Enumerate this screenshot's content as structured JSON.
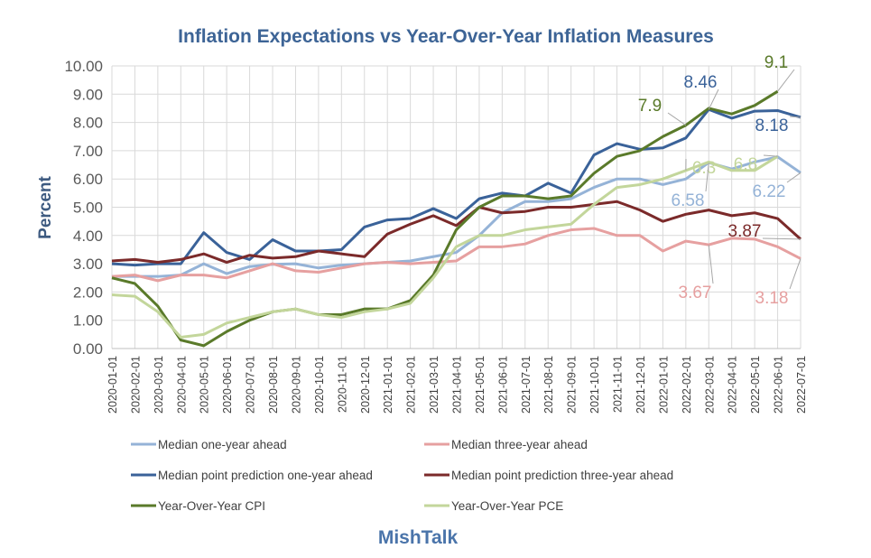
{
  "chart_data": {
    "type": "line",
    "title": "Inflation Expectations vs Year-Over-Year Inflation Measures",
    "ylabel": "Percent",
    "xlabel": "",
    "ylim": [
      0,
      10
    ],
    "yticks": [
      "0.00",
      "1.00",
      "2.00",
      "3.00",
      "4.00",
      "5.00",
      "6.00",
      "7.00",
      "8.00",
      "9.00",
      "10.00"
    ],
    "grid": true,
    "legend_position": "bottom",
    "footer": "MishTalk",
    "categories": [
      "2020-01-01",
      "2020-02-01",
      "2020-03-01",
      "2020-04-01",
      "2020-05-01",
      "2020-06-01",
      "2020-07-01",
      "2020-08-01",
      "2020-09-01",
      "2020-10-01",
      "2020-11-01",
      "2020-12-01",
      "2021-01-01",
      "2021-02-01",
      "2021-03-01",
      "2021-04-01",
      "2021-05-01",
      "2021-06-01",
      "2021-07-01",
      "2021-08-01",
      "2021-09-01",
      "2021-10-01",
      "2021-11-01",
      "2021-12-01",
      "2022-01-01",
      "2022-02-01",
      "2022-03-01",
      "2022-04-01",
      "2022-05-01",
      "2022-06-01",
      "2022-07-01"
    ],
    "series": [
      {
        "name": "Median one-year ahead",
        "color": "#95b3d7",
        "values": [
          2.55,
          2.55,
          2.55,
          2.6,
          3.0,
          2.65,
          2.9,
          2.98,
          3.0,
          2.85,
          2.95,
          3.0,
          3.05,
          3.1,
          3.25,
          3.4,
          4.0,
          4.8,
          5.2,
          5.2,
          5.3,
          5.7,
          6.0,
          6.0,
          5.8,
          6.0,
          6.58,
          6.35,
          6.6,
          6.78,
          6.22
        ]
      },
      {
        "name": "Median three-year ahead",
        "color": "#e6a0a0",
        "values": [
          2.55,
          2.6,
          2.4,
          2.6,
          2.6,
          2.5,
          2.75,
          3.0,
          2.75,
          2.7,
          2.85,
          3.0,
          3.05,
          3.0,
          3.05,
          3.1,
          3.6,
          3.6,
          3.7,
          4.0,
          4.2,
          4.25,
          4.0,
          4.0,
          3.45,
          3.8,
          3.67,
          3.9,
          3.87,
          3.6,
          3.18
        ]
      },
      {
        "name": "Median point prediction one-year ahead",
        "color": "#3a6299",
        "values": [
          3.0,
          2.95,
          3.0,
          3.0,
          4.1,
          3.4,
          3.15,
          3.85,
          3.45,
          3.45,
          3.5,
          4.3,
          4.55,
          4.6,
          4.95,
          4.6,
          5.3,
          5.5,
          5.4,
          5.85,
          5.5,
          6.85,
          7.25,
          7.05,
          7.1,
          7.45,
          8.46,
          8.15,
          8.4,
          8.42,
          8.18
        ]
      },
      {
        "name": "Median point prediction three-year ahead",
        "color": "#7b2a2a",
        "values": [
          3.1,
          3.15,
          3.05,
          3.15,
          3.35,
          3.05,
          3.3,
          3.2,
          3.25,
          3.45,
          3.35,
          3.25,
          4.05,
          4.4,
          4.7,
          4.35,
          5.0,
          4.8,
          4.85,
          5.0,
          5.0,
          5.1,
          5.2,
          4.9,
          4.5,
          4.75,
          4.9,
          4.7,
          4.8,
          4.6,
          3.87
        ]
      },
      {
        "name": "Year-Over-Year CPI",
        "color": "#5a7a2a",
        "values": [
          2.5,
          2.3,
          1.5,
          0.3,
          0.1,
          0.6,
          1.0,
          1.3,
          1.4,
          1.2,
          1.2,
          1.4,
          1.4,
          1.7,
          2.6,
          4.2,
          5.0,
          5.4,
          5.4,
          5.3,
          5.4,
          6.2,
          6.8,
          7.0,
          7.5,
          7.9,
          8.5,
          8.3,
          8.6,
          9.1,
          null
        ]
      },
      {
        "name": "Year-Over-Year PCE",
        "color": "#c3d69b",
        "values": [
          1.9,
          1.85,
          1.3,
          0.4,
          0.5,
          0.9,
          1.1,
          1.3,
          1.4,
          1.2,
          1.1,
          1.3,
          1.4,
          1.6,
          2.5,
          3.6,
          4.0,
          4.0,
          4.2,
          4.3,
          4.4,
          5.1,
          5.7,
          5.8,
          6.0,
          6.3,
          6.6,
          6.3,
          6.3,
          6.8,
          null
        ]
      }
    ],
    "annotations": [
      {
        "series": 2,
        "index": 26,
        "text": "8.46"
      },
      {
        "series": 2,
        "index": 30,
        "text": "8.18"
      },
      {
        "series": 4,
        "index": 25,
        "text": "7.9"
      },
      {
        "series": 4,
        "index": 29,
        "text": "9.1"
      },
      {
        "series": 5,
        "index": 25,
        "text": "6.3"
      },
      {
        "series": 5,
        "index": 29,
        "text": "6.8"
      },
      {
        "series": 0,
        "index": 26,
        "text": "6.58"
      },
      {
        "series": 0,
        "index": 30,
        "text": "6.22"
      },
      {
        "series": 3,
        "index": 30,
        "text": "3.87"
      },
      {
        "series": 1,
        "index": 26,
        "text": "3.67"
      },
      {
        "series": 1,
        "index": 30,
        "text": "3.18"
      }
    ]
  }
}
